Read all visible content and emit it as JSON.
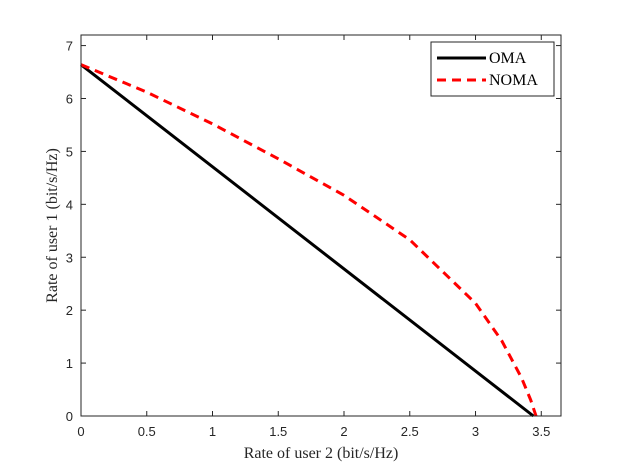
{
  "chart_data": {
    "type": "line",
    "title": "",
    "xlabel": "Rate of user 2 (bit/s/Hz)",
    "ylabel": "Rate of user 1 (bit/s/Hz)",
    "xlim": [
      0,
      3.65
    ],
    "ylim": [
      0,
      7.2
    ],
    "xticks": [
      0,
      0.5,
      1,
      1.5,
      2,
      2.5,
      3,
      3.5
    ],
    "xtick_labels": [
      "0",
      "0.5",
      "1",
      "1.5",
      "2",
      "2.5",
      "3",
      "3.5"
    ],
    "yticks": [
      0,
      1,
      2,
      3,
      4,
      5,
      6,
      7
    ],
    "ytick_labels": [
      "0",
      "1",
      "2",
      "3",
      "4",
      "5",
      "6",
      "7"
    ],
    "grid": false,
    "legend_position": "top-right",
    "series": [
      {
        "name": "OMA",
        "color": "#000000",
        "style": "solid",
        "x": [
          0.0,
          3.44
        ],
        "y": [
          6.64,
          0.0
        ]
      },
      {
        "name": "NOMA",
        "color": "#ff0000",
        "style": "dashed",
        "x": [
          0.0,
          0.5,
          1.0,
          1.5,
          2.0,
          2.5,
          3.0,
          3.2,
          3.35,
          3.42,
          3.46
        ],
        "y": [
          6.64,
          6.12,
          5.52,
          4.86,
          4.17,
          3.33,
          2.13,
          1.42,
          0.72,
          0.3,
          0.0
        ]
      }
    ]
  }
}
